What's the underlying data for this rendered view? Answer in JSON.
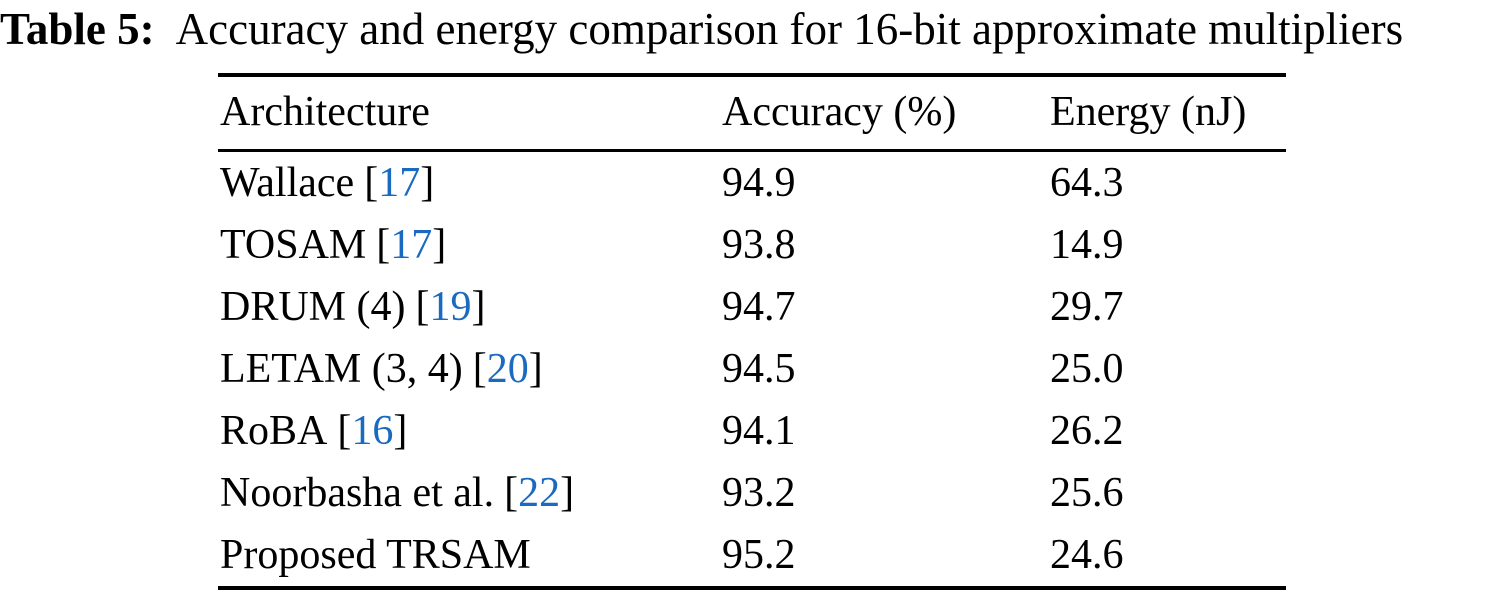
{
  "caption": {
    "label": "Table 5:",
    "text": "Accuracy and energy comparison for 16-bit approximate multipliers"
  },
  "table": {
    "columns": [
      "Architecture",
      "Accuracy (%)",
      "Energy (nJ)"
    ],
    "citation_color": "#1a6bc0",
    "citation_brackets": [
      "[",
      "]"
    ],
    "rows": [
      {
        "architecture": "Wallace",
        "citation": "17",
        "accuracy": "94.9",
        "energy": "64.3"
      },
      {
        "architecture": "TOSAM",
        "citation": "17",
        "accuracy": "93.8",
        "energy": "14.9"
      },
      {
        "architecture": "DRUM (4)",
        "citation": "19",
        "accuracy": "94.7",
        "energy": "29.7"
      },
      {
        "architecture": "LETAM (3, 4)",
        "citation": "20",
        "accuracy": "94.5",
        "energy": "25.0"
      },
      {
        "architecture": "RoBA",
        "citation": "16",
        "accuracy": "94.1",
        "energy": "26.2"
      },
      {
        "architecture": "Noorbasha et al.",
        "citation": "22",
        "accuracy": "93.2",
        "energy": "25.6"
      },
      {
        "architecture": "Proposed TRSAM",
        "citation": null,
        "accuracy": "95.2",
        "energy": "24.6"
      }
    ]
  },
  "colors": {
    "text": "#000000",
    "background": "#ffffff"
  }
}
